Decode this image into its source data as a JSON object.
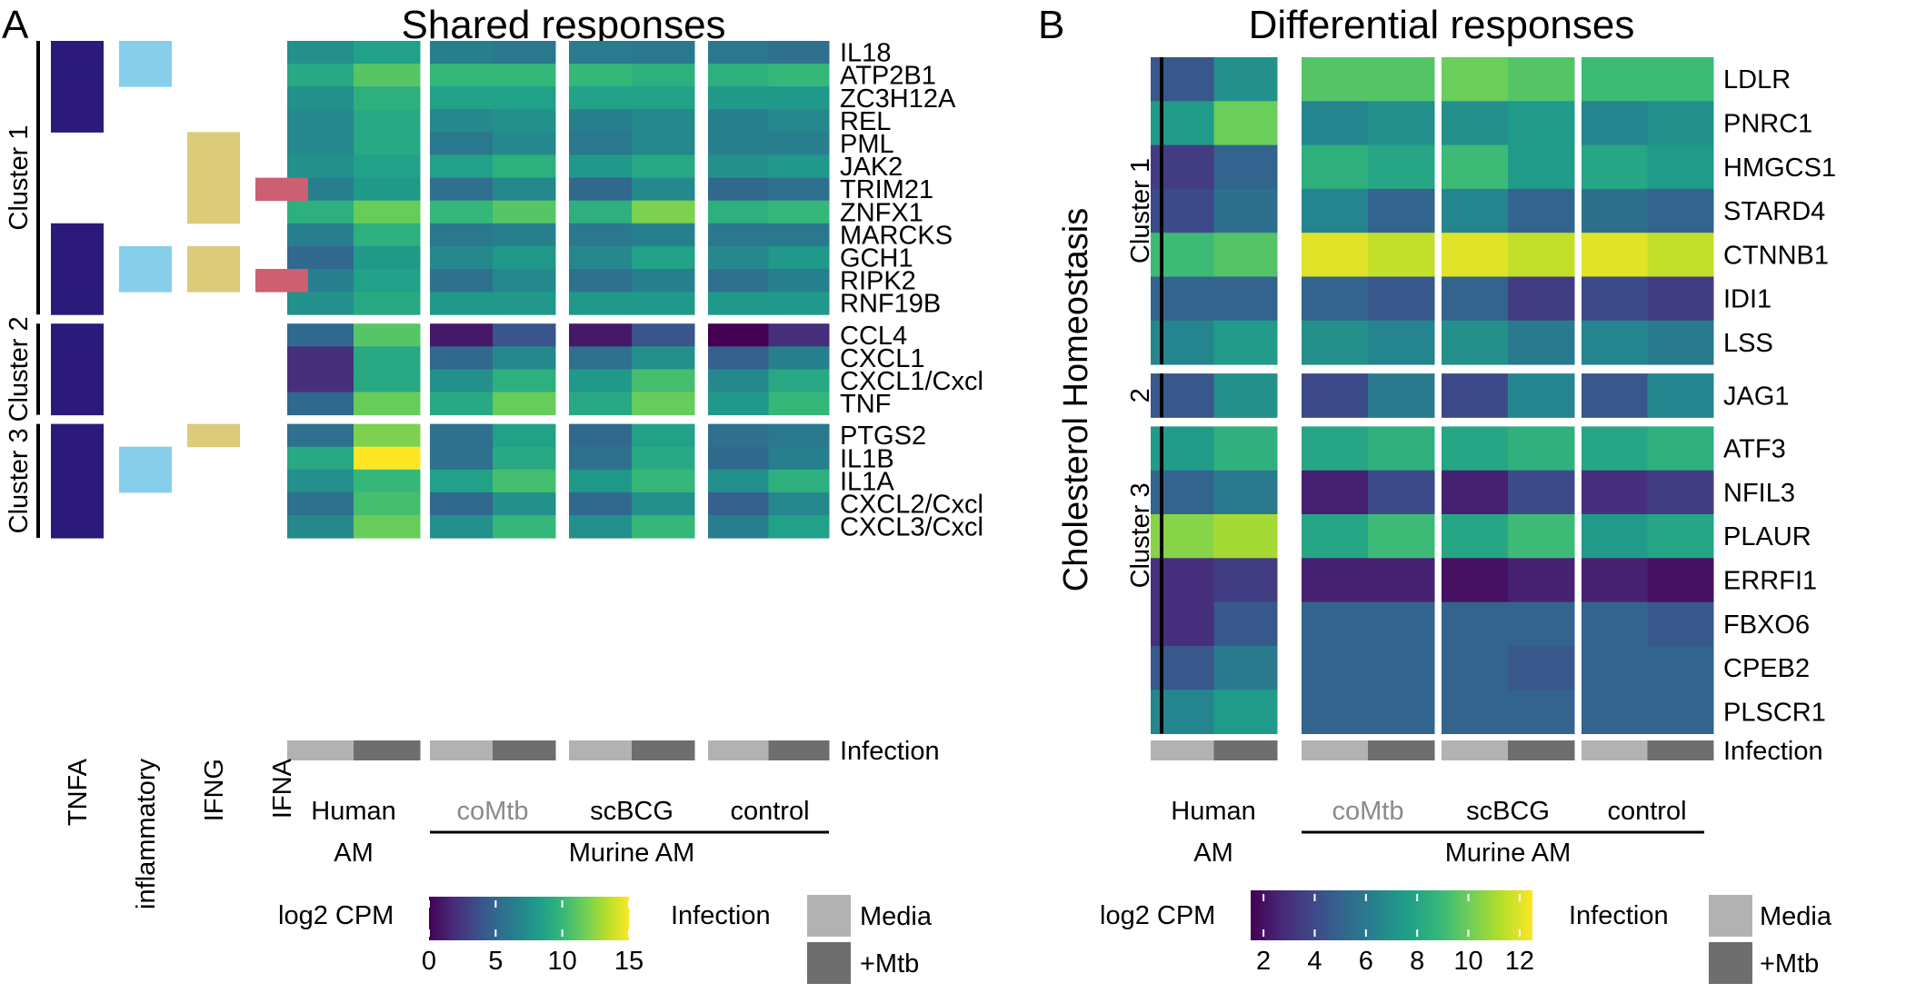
{
  "chart_data": [
    {
      "type": "heatmap",
      "panel": "A",
      "title": "Shared responses",
      "genes": [
        "IL18",
        "ATP2B1",
        "ZC3H12A",
        "REL",
        "PML",
        "JAK2",
        "TRIM21",
        "ZNFX1",
        "MARCKS",
        "GCH1",
        "RIPK2",
        "RNF19B",
        "CCL4",
        "CXCL1",
        "CXCL1/Cxcl",
        "TNF",
        "PTGS2",
        "IL1B",
        "IL1A",
        "CXCL2/Cxcl",
        "CXCL3/Cxcl"
      ],
      "clusters": [
        {
          "label": "Cluster 1",
          "rows": 12
        },
        {
          "label": "Cluster 2",
          "rows": 4
        },
        {
          "label": "Cluster 3",
          "rows": 5
        }
      ],
      "annotation_columns": [
        {
          "name": "TNFA",
          "color": "#2b1a7a",
          "rows": [
            1,
            1,
            1,
            1,
            0,
            0,
            0,
            0,
            1,
            1,
            1,
            1,
            1,
            1,
            1,
            1,
            1,
            1,
            1,
            1,
            1
          ]
        },
        {
          "name": "inflammatory",
          "color": "#87ceeb",
          "rows": [
            1,
            1,
            0,
            0,
            0,
            0,
            0,
            0,
            0,
            1,
            1,
            0,
            0,
            0,
            0,
            0,
            0,
            1,
            1,
            0,
            0
          ]
        },
        {
          "name": "IFNG",
          "color": "#dccb7a",
          "rows": [
            0,
            0,
            0,
            0,
            1,
            1,
            1,
            1,
            0,
            1,
            1,
            0,
            0,
            0,
            0,
            0,
            1,
            0,
            0,
            0,
            0
          ]
        },
        {
          "name": "IFNA",
          "color": "#cc5f71",
          "rows": [
            0,
            0,
            0,
            0,
            0,
            0,
            1,
            0,
            0,
            0,
            1,
            0,
            0,
            0,
            0,
            0,
            0,
            0,
            0,
            0,
            0
          ]
        }
      ],
      "column_groups": [
        "Human AM",
        "coMtb",
        "scBCG",
        "control"
      ],
      "columns": [
        "Human AM Media",
        "Human AM +Mtb",
        "coMtb Media",
        "coMtb +Mtb",
        "scBCG Media",
        "scBCG +Mtb",
        "control Media",
        "control +Mtb"
      ],
      "values": [
        [
          7.5,
          8.5,
          6.5,
          6.0,
          6.2,
          6.0,
          6.0,
          5.5
        ],
        [
          9.0,
          11.0,
          10.0,
          10.0,
          10.0,
          9.5,
          9.5,
          10.0
        ],
        [
          7.5,
          9.5,
          8.5,
          8.5,
          8.5,
          8.5,
          8.0,
          8.0
        ],
        [
          7.0,
          9.0,
          7.0,
          7.5,
          6.5,
          7.0,
          6.5,
          7.0
        ],
        [
          7.0,
          9.0,
          6.0,
          7.0,
          6.0,
          7.0,
          6.5,
          6.5
        ],
        [
          7.5,
          8.5,
          8.5,
          9.5,
          8.0,
          9.0,
          7.5,
          8.0
        ],
        [
          6.5,
          8.0,
          5.5,
          7.0,
          5.0,
          7.0,
          5.0,
          5.5
        ],
        [
          9.5,
          11.5,
          10.0,
          11.0,
          9.5,
          12.0,
          9.5,
          10.0
        ],
        [
          6.5,
          9.5,
          6.0,
          6.5,
          6.0,
          6.5,
          6.0,
          6.0
        ],
        [
          5.0,
          8.0,
          7.0,
          8.0,
          7.0,
          8.5,
          7.0,
          8.0
        ],
        [
          6.5,
          8.5,
          5.5,
          7.0,
          5.5,
          6.5,
          5.5,
          6.5
        ],
        [
          7.5,
          9.0,
          8.0,
          8.0,
          8.0,
          8.0,
          8.0,
          8.0
        ],
        [
          5.0,
          11.0,
          1.0,
          4.0,
          1.0,
          4.0,
          0.0,
          2.0
        ],
        [
          2.0,
          9.0,
          5.0,
          7.0,
          5.5,
          7.5,
          4.5,
          6.5
        ],
        [
          2.0,
          9.0,
          7.5,
          9.5,
          8.0,
          10.5,
          7.0,
          9.0
        ],
        [
          5.0,
          11.5,
          9.0,
          11.5,
          9.0,
          11.5,
          8.0,
          10.0
        ],
        [
          5.5,
          12.0,
          5.5,
          8.5,
          5.0,
          8.5,
          5.5,
          6.0
        ],
        [
          9.0,
          15.0,
          5.5,
          9.0,
          5.5,
          9.0,
          5.0,
          6.5
        ],
        [
          7.5,
          10.0,
          8.5,
          10.5,
          8.0,
          10.0,
          7.5,
          9.5
        ],
        [
          5.5,
          10.5,
          5.0,
          7.5,
          5.0,
          7.5,
          4.5,
          7.0
        ],
        [
          7.0,
          11.5,
          7.5,
          10.0,
          7.5,
          10.0,
          6.5,
          8.5
        ]
      ],
      "infection_row_label": "Infection",
      "legend": {
        "title": "log2 CPM",
        "ticks": [
          "0",
          "5",
          "10",
          "15"
        ],
        "range": [
          0,
          15
        ]
      }
    },
    {
      "type": "heatmap",
      "panel": "B",
      "title": "Differential responses",
      "side_label": "Cholesterol Homeostasis",
      "genes": [
        "LDLR",
        "PNRC1",
        "HMGCS1",
        "STARD4",
        "CTNNB1",
        "IDI1",
        "LSS",
        "JAG1",
        "ATF3",
        "NFIL3",
        "PLAUR",
        "ERRFI1",
        "FBXO6",
        "CPEB2",
        "PLSCR1"
      ],
      "clusters": [
        {
          "label": "Cluster 1",
          "rows": 7
        },
        {
          "label": "2",
          "rows": 1
        },
        {
          "label": "Cluster 3",
          "rows": 7
        }
      ],
      "column_groups": [
        "Human AM",
        "coMtb",
        "scBCG",
        "control"
      ],
      "columns": [
        "Human AM Media",
        "Human AM +Mtb",
        "coMtb Media",
        "coMtb +Mtb",
        "scBCG Media",
        "scBCG +Mtb",
        "control Media",
        "control +Mtb"
      ],
      "values": [
        [
          4.5,
          7.0,
          9.5,
          9.5,
          10.0,
          9.5,
          9.0,
          9.0
        ],
        [
          7.5,
          10.0,
          6.5,
          7.0,
          7.0,
          7.5,
          6.5,
          7.0
        ],
        [
          3.5,
          5.0,
          8.5,
          8.0,
          9.0,
          7.5,
          8.0,
          7.5
        ],
        [
          4.0,
          5.5,
          6.5,
          5.0,
          6.5,
          5.0,
          5.5,
          5.0
        ],
        [
          9.0,
          9.5,
          12.0,
          11.5,
          12.0,
          11.5,
          12.0,
          11.5
        ],
        [
          5.0,
          5.0,
          5.0,
          4.5,
          5.0,
          3.5,
          4.0,
          3.5
        ],
        [
          6.5,
          7.5,
          7.0,
          6.5,
          7.0,
          6.0,
          6.5,
          6.0
        ],
        [
          4.5,
          7.0,
          4.0,
          6.0,
          4.0,
          6.5,
          4.5,
          6.5
        ],
        [
          7.5,
          8.5,
          8.0,
          8.5,
          8.0,
          8.5,
          8.0,
          8.5
        ],
        [
          5.0,
          6.0,
          2.5,
          4.0,
          2.5,
          4.0,
          3.0,
          3.5
        ],
        [
          10.5,
          11.0,
          8.0,
          9.0,
          8.0,
          9.0,
          7.5,
          8.0
        ],
        [
          3.0,
          3.5,
          2.5,
          2.5,
          2.0,
          2.5,
          2.5,
          2.0
        ],
        [
          3.0,
          4.5,
          5.0,
          5.0,
          5.0,
          5.0,
          5.0,
          4.5
        ],
        [
          4.5,
          6.0,
          5.0,
          5.0,
          5.0,
          4.5,
          5.0,
          5.0
        ],
        [
          6.5,
          7.5,
          5.0,
          5.0,
          5.0,
          5.0,
          5.0,
          5.0
        ]
      ],
      "infection_row_label": "Infection",
      "legend": {
        "title": "log2 CPM",
        "ticks": [
          "2",
          "4",
          "6",
          "8",
          "10",
          "12"
        ],
        "range": [
          1.5,
          12.5
        ]
      }
    }
  ],
  "labels": {
    "panel_a": "A",
    "panel_b": "B",
    "human_line1": "Human",
    "human_line2": "AM",
    "murine_am": "Murine AM",
    "infection_legend_title": "Infection",
    "media": "Media",
    "mtb": "+Mtb"
  },
  "colors": {
    "media": "#b2b2b2",
    "mtb": "#6e6e6e",
    "viridis": [
      "#440154",
      "#482878",
      "#3e4989",
      "#31688e",
      "#26828e",
      "#1f9e89",
      "#35b779",
      "#6ece58",
      "#b5de2b",
      "#fde725"
    ]
  }
}
